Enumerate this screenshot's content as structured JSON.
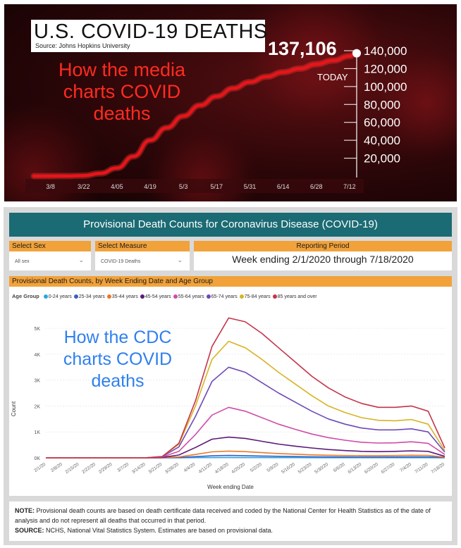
{
  "top_chart": {
    "title": "U.S. COVID-19 DEATHS",
    "source": "Source: Johns Hopkins University",
    "annotation": "How the media charts COVID deaths",
    "current_value_label": "137,106",
    "today_label": "TODAY",
    "colors": {
      "line": "#e8141b",
      "background": "#2a0608",
      "text": "#ffffff"
    }
  },
  "cdc_dashboard": {
    "header": "Provisional Death Counts for Coronavirus Disease (COVID-19)",
    "filters": {
      "sex": {
        "label": "Select Sex",
        "value": "All sex"
      },
      "measure": {
        "label": "Select Measure",
        "value": "COVID-19 Deaths"
      },
      "period": {
        "label": "Reporting Period",
        "value": "Week ending 2/1/2020 through 7/18/2020"
      }
    },
    "chart_title": "Provisional Death Counts, by Week Ending Date and Age Group",
    "legend_title": "Age Group",
    "annotation": "How the CDC charts COVID deaths",
    "note_label": "NOTE:",
    "note_text": " Provisional death counts are based on death certificate data received and coded by the National Center for Health Statistics as of the date of analysis and do not represent all deaths that occurred in that period.",
    "source_label": "SOURCE:",
    "source_text": " NCHS, National Vital Statistics System. Estimates are based on provisional data.",
    "colors": {
      "header": "#1b6b74",
      "accent": "#f2a23a"
    }
  },
  "chart_data": [
    {
      "type": "line",
      "title": "U.S. COVID-19 DEATHS",
      "x_tick_labels": [
        "3/8",
        "3/22",
        "4/05",
        "4/19",
        "5/3",
        "5/17",
        "5/31",
        "6/14",
        "6/28",
        "7/12"
      ],
      "y_tick_labels": [
        "20,000",
        "40,000",
        "60,000",
        "80,000",
        "100,000",
        "120,000",
        "140,000"
      ],
      "ylim": [
        0,
        140000
      ],
      "series": [
        {
          "color": "#e8141b",
          "x": [
            "3/1",
            "3/8",
            "3/15",
            "3/22",
            "3/29",
            "4/5",
            "4/12",
            "4/19",
            "4/26",
            "5/3",
            "5/10",
            "5/17",
            "5/24",
            "5/31",
            "6/7",
            "6/14",
            "6/21",
            "6/28",
            "7/5",
            "7/12",
            "7/15"
          ],
          "y": [
            0,
            0,
            100,
            500,
            3000,
            9000,
            22000,
            40000,
            54000,
            67000,
            79000,
            89000,
            98000,
            105000,
            111000,
            116000,
            120000,
            125000,
            129000,
            134000,
            137106
          ]
        }
      ],
      "highlight": {
        "x": "7/15",
        "y": 137106,
        "label": "137,106"
      }
    },
    {
      "type": "line",
      "title": "Provisional Death Counts, by Week Ending Date and Age Group",
      "xlabel": "Week ending Date",
      "ylabel": "Count",
      "ylim": [
        0,
        5600
      ],
      "y_tick_labels": [
        "0K",
        "1K",
        "2K",
        "3K",
        "4K",
        "5K"
      ],
      "y_tick_values": [
        0,
        1000,
        2000,
        3000,
        4000,
        5000
      ],
      "categories": [
        "2/1/20",
        "2/8/20",
        "2/15/20",
        "2/22/20",
        "2/29/20",
        "3/7/20",
        "3/14/20",
        "3/21/20",
        "3/28/20",
        "4/4/20",
        "4/11/20",
        "4/18/20",
        "4/25/20",
        "5/2/20",
        "5/9/20",
        "5/16/20",
        "5/23/20",
        "5/30/20",
        "6/6/20",
        "6/13/20",
        "6/20/20",
        "6/27/20",
        "7/4/20",
        "7/11/20",
        "7/18/20"
      ],
      "x_tick_labels": [
        "2/1/20",
        "2/8/20",
        "2/15/20",
        "2/22/20",
        "2/29/20",
        "3/7/20",
        "3/14/20",
        "3/21/20",
        "3/28/20",
        "4/4/20",
        "4/11/20",
        "4/18/20",
        "4/25/20",
        "5/2/20",
        "5/9/20",
        "5/16/20",
        "5/23/20",
        "5/30/20",
        "6/6/20",
        "6/13/20",
        "6/20/20",
        "6/27/20",
        "7/4/20",
        "7/11/20",
        "7/18/20"
      ],
      "series": [
        {
          "name": "0-24 years",
          "color": "#2aa7df",
          "values": [
            0,
            0,
            0,
            0,
            0,
            0,
            0,
            0,
            3,
            8,
            12,
            14,
            12,
            10,
            8,
            7,
            6,
            5,
            5,
            5,
            5,
            5,
            6,
            6,
            2
          ]
        },
        {
          "name": "25-34 years",
          "color": "#3b5fc4",
          "values": [
            0,
            0,
            0,
            0,
            0,
            0,
            0,
            2,
            12,
            45,
            80,
            92,
            85,
            72,
            60,
            50,
            42,
            36,
            32,
            30,
            30,
            32,
            36,
            34,
            10
          ]
        },
        {
          "name": "35-44 years",
          "color": "#e8792b",
          "values": [
            0,
            0,
            0,
            0,
            0,
            0,
            0,
            5,
            35,
            130,
            230,
            260,
            240,
            200,
            165,
            140,
            115,
            100,
            90,
            85,
            85,
            90,
            100,
            95,
            25
          ]
        },
        {
          "name": "45-54 years",
          "color": "#5c1a78",
          "values": [
            0,
            0,
            0,
            0,
            0,
            0,
            1,
            15,
            110,
            400,
            720,
            800,
            750,
            640,
            530,
            450,
            380,
            320,
            280,
            250,
            240,
            250,
            270,
            250,
            60
          ]
        },
        {
          "name": "55-64 years",
          "color": "#d04ca8",
          "values": [
            0,
            0,
            0,
            0,
            0,
            0,
            2,
            30,
            250,
            900,
            1650,
            1950,
            1800,
            1550,
            1300,
            1100,
            920,
            780,
            680,
            600,
            570,
            580,
            620,
            560,
            130
          ]
        },
        {
          "name": "65-74 years",
          "color": "#6e4ab8",
          "values": [
            0,
            0,
            0,
            0,
            0,
            0,
            3,
            45,
            420,
            1600,
            2950,
            3500,
            3300,
            2900,
            2500,
            2150,
            1800,
            1500,
            1300,
            1150,
            1080,
            1080,
            1120,
            1000,
            220
          ]
        },
        {
          "name": "75-84 years",
          "color": "#d8b324",
          "values": [
            0,
            0,
            0,
            0,
            0,
            0,
            3,
            55,
            520,
            2000,
            3800,
            4500,
            4250,
            3800,
            3300,
            2850,
            2400,
            2000,
            1750,
            1550,
            1450,
            1430,
            1480,
            1300,
            280
          ]
        },
        {
          "name": "85 years and over",
          "color": "#c4344b",
          "values": [
            0,
            0,
            0,
            0,
            0,
            0,
            2,
            50,
            560,
            2200,
            4300,
            5400,
            5250,
            4800,
            4250,
            3700,
            3150,
            2700,
            2350,
            2100,
            1950,
            1950,
            2000,
            1800,
            380
          ]
        }
      ]
    }
  ]
}
